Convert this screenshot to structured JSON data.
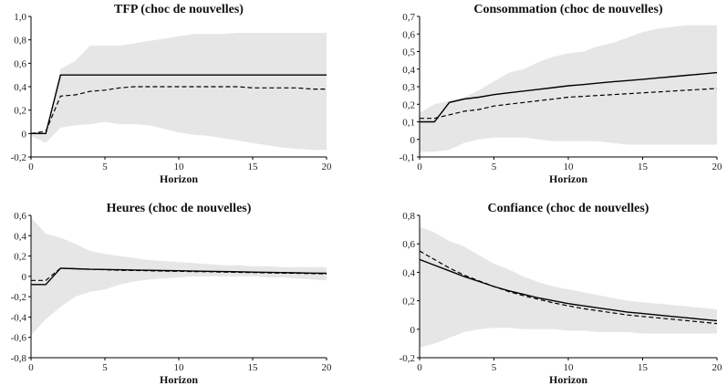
{
  "chart_data": [
    {
      "type": "line",
      "title": "TFP (choc de nouvelles)",
      "xlabel": "Horizon",
      "ylabel": "",
      "xlim": [
        0,
        20
      ],
      "ylim": [
        -0.2,
        1.0
      ],
      "xticks": [
        0,
        5,
        10,
        15,
        20
      ],
      "yticks": [
        -0.2,
        0,
        0.2,
        0.4,
        0.6,
        0.8,
        1.0
      ],
      "ytick_labels": [
        "-0,2",
        "0",
        "0,2",
        "0,4",
        "0,6",
        "0,8",
        "1,0"
      ],
      "x": [
        0,
        1,
        2,
        3,
        4,
        5,
        6,
        7,
        8,
        9,
        10,
        11,
        12,
        13,
        14,
        15,
        16,
        17,
        18,
        19,
        20
      ],
      "series": [
        {
          "style": "solid",
          "values": [
            0.0,
            0.0,
            0.5,
            0.5,
            0.5,
            0.5,
            0.5,
            0.5,
            0.5,
            0.5,
            0.5,
            0.5,
            0.5,
            0.5,
            0.5,
            0.5,
            0.5,
            0.5,
            0.5,
            0.5,
            0.5
          ]
        },
        {
          "style": "dashed",
          "values": [
            0.0,
            0.02,
            0.32,
            0.33,
            0.36,
            0.37,
            0.39,
            0.4,
            0.4,
            0.4,
            0.4,
            0.4,
            0.4,
            0.4,
            0.4,
            0.39,
            0.39,
            0.39,
            0.39,
            0.38,
            0.38
          ]
        }
      ],
      "band": {
        "upper": [
          0.0,
          0.0,
          0.55,
          0.62,
          0.75,
          0.75,
          0.75,
          0.77,
          0.79,
          0.81,
          0.83,
          0.85,
          0.85,
          0.85,
          0.86,
          0.86,
          0.86,
          0.86,
          0.86,
          0.86,
          0.86
        ],
        "lower": [
          -0.02,
          -0.08,
          0.05,
          0.07,
          0.08,
          0.1,
          0.08,
          0.08,
          0.07,
          0.04,
          0.01,
          -0.01,
          -0.02,
          -0.04,
          -0.06,
          -0.08,
          -0.1,
          -0.12,
          -0.13,
          -0.14,
          -0.14
        ]
      }
    },
    {
      "type": "line",
      "title": "Consommation (choc de nouvelles)",
      "xlabel": "Horizon",
      "ylabel": "",
      "xlim": [
        0,
        20
      ],
      "ylim": [
        -0.1,
        0.7
      ],
      "xticks": [
        0,
        5,
        10,
        15,
        20
      ],
      "yticks": [
        -0.1,
        0,
        0.1,
        0.2,
        0.3,
        0.4,
        0.5,
        0.6,
        0.7
      ],
      "ytick_labels": [
        "-0,1",
        "0",
        "0,1",
        "0,2",
        "0,3",
        "0,4",
        "0,5",
        "0,6",
        "0,7"
      ],
      "x": [
        0,
        1,
        2,
        3,
        4,
        5,
        6,
        7,
        8,
        9,
        10,
        11,
        12,
        13,
        14,
        15,
        16,
        17,
        18,
        19,
        20
      ],
      "series": [
        {
          "style": "solid",
          "values": [
            0.1,
            0.1,
            0.21,
            0.23,
            0.24,
            0.255,
            0.265,
            0.275,
            0.285,
            0.295,
            0.305,
            0.312,
            0.32,
            0.328,
            0.335,
            0.342,
            0.35,
            0.357,
            0.365,
            0.372,
            0.38
          ]
        },
        {
          "style": "dashed",
          "values": [
            0.12,
            0.12,
            0.14,
            0.16,
            0.17,
            0.19,
            0.2,
            0.21,
            0.22,
            0.23,
            0.24,
            0.245,
            0.25,
            0.255,
            0.26,
            0.265,
            0.27,
            0.275,
            0.28,
            0.285,
            0.29
          ]
        }
      ],
      "band": {
        "upper": [
          0.15,
          0.2,
          0.22,
          0.24,
          0.28,
          0.33,
          0.38,
          0.4,
          0.44,
          0.47,
          0.49,
          0.5,
          0.53,
          0.55,
          0.58,
          0.61,
          0.63,
          0.64,
          0.65,
          0.65,
          0.65
        ],
        "lower": [
          -0.07,
          -0.07,
          -0.06,
          -0.02,
          0.0,
          0.01,
          0.01,
          0.01,
          0.0,
          -0.01,
          -0.01,
          -0.01,
          -0.01,
          -0.02,
          -0.03,
          -0.03,
          -0.03,
          -0.03,
          -0.03,
          -0.03,
          -0.03
        ]
      }
    },
    {
      "type": "line",
      "title": "Heures (choc de nouvelles)",
      "xlabel": "Horizon",
      "ylabel": "",
      "xlim": [
        0,
        20
      ],
      "ylim": [
        -0.8,
        0.6
      ],
      "xticks": [
        0,
        5,
        10,
        15,
        20
      ],
      "yticks": [
        -0.8,
        -0.6,
        -0.4,
        -0.2,
        0,
        0.2,
        0.4,
        0.6
      ],
      "ytick_labels": [
        "-0,8",
        "-0,6",
        "-0,4",
        "-0,2",
        "0",
        "0,2",
        "0,4",
        "0,6"
      ],
      "x": [
        0,
        1,
        2,
        3,
        4,
        5,
        6,
        7,
        8,
        9,
        10,
        11,
        12,
        13,
        14,
        15,
        16,
        17,
        18,
        19,
        20
      ],
      "series": [
        {
          "style": "solid",
          "values": [
            -0.08,
            -0.08,
            0.08,
            0.075,
            0.07,
            0.068,
            0.065,
            0.062,
            0.06,
            0.057,
            0.055,
            0.052,
            0.05,
            0.047,
            0.045,
            0.042,
            0.04,
            0.037,
            0.035,
            0.032,
            0.03
          ]
        },
        {
          "style": "dashed",
          "values": [
            -0.04,
            -0.04,
            0.08,
            0.075,
            0.07,
            0.065,
            0.06,
            0.058,
            0.055,
            0.052,
            0.05,
            0.047,
            0.045,
            0.042,
            0.04,
            0.037,
            0.035,
            0.032,
            0.03,
            0.027,
            0.025
          ]
        }
      ],
      "band": {
        "upper": [
          0.58,
          0.42,
          0.38,
          0.32,
          0.25,
          0.22,
          0.2,
          0.18,
          0.16,
          0.15,
          0.14,
          0.13,
          0.12,
          0.11,
          0.11,
          0.1,
          0.1,
          0.09,
          0.09,
          0.09,
          0.09
        ],
        "lower": [
          -0.58,
          -0.42,
          -0.3,
          -0.2,
          -0.15,
          -0.13,
          -0.08,
          -0.05,
          -0.03,
          -0.02,
          -0.01,
          0.0,
          0.0,
          0.0,
          0.0,
          0.0,
          -0.01,
          -0.01,
          -0.02,
          -0.03,
          -0.04
        ]
      }
    },
    {
      "type": "line",
      "title": "Confiance (choc de nouvelles)",
      "xlabel": "Horizon",
      "ylabel": "",
      "xlim": [
        0,
        20
      ],
      "ylim": [
        -0.2,
        0.8
      ],
      "xticks": [
        0,
        5,
        10,
        15,
        20
      ],
      "yticks": [
        -0.2,
        0,
        0.2,
        0.4,
        0.6,
        0.8
      ],
      "ytick_labels": [
        "-0,2",
        "0",
        "0,2",
        "0,4",
        "0,6",
        "0,8"
      ],
      "x": [
        0,
        1,
        2,
        3,
        4,
        5,
        6,
        7,
        8,
        9,
        10,
        11,
        12,
        13,
        14,
        15,
        16,
        17,
        18,
        19,
        20
      ],
      "series": [
        {
          "style": "solid",
          "values": [
            0.49,
            0.45,
            0.41,
            0.37,
            0.335,
            0.3,
            0.27,
            0.245,
            0.22,
            0.2,
            0.18,
            0.165,
            0.15,
            0.135,
            0.12,
            0.11,
            0.1,
            0.09,
            0.08,
            0.07,
            0.06
          ]
        },
        {
          "style": "dashed",
          "values": [
            0.55,
            0.49,
            0.43,
            0.38,
            0.34,
            0.3,
            0.265,
            0.235,
            0.21,
            0.185,
            0.165,
            0.145,
            0.13,
            0.115,
            0.1,
            0.09,
            0.08,
            0.07,
            0.06,
            0.05,
            0.04
          ]
        }
      ],
      "band": {
        "upper": [
          0.72,
          0.68,
          0.62,
          0.58,
          0.52,
          0.46,
          0.42,
          0.37,
          0.33,
          0.3,
          0.28,
          0.26,
          0.24,
          0.22,
          0.2,
          0.19,
          0.18,
          0.17,
          0.16,
          0.15,
          0.14
        ],
        "lower": [
          -0.13,
          -0.1,
          -0.06,
          -0.02,
          0.0,
          0.01,
          0.01,
          0.0,
          0.0,
          0.0,
          -0.01,
          -0.01,
          -0.02,
          -0.02,
          -0.02,
          -0.03,
          -0.03,
          -0.03,
          -0.03,
          -0.03,
          -0.03
        ]
      }
    }
  ]
}
